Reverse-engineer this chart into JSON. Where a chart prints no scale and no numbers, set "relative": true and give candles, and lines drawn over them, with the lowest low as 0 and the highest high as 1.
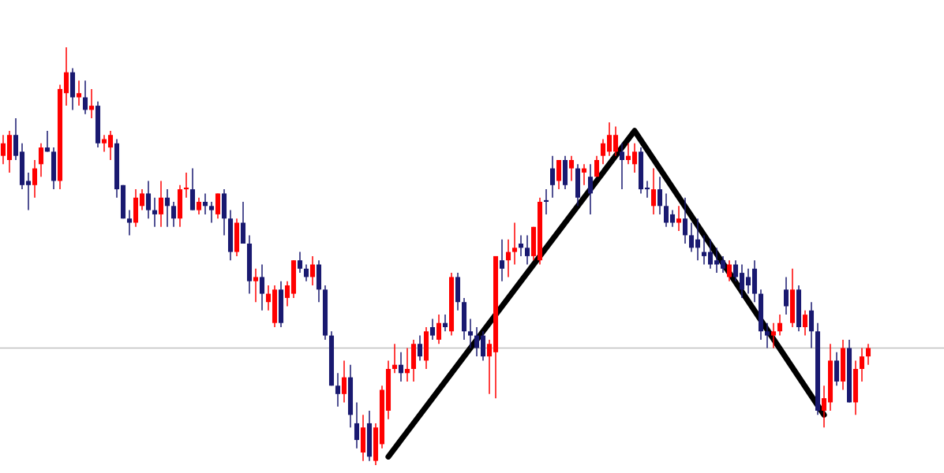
{
  "chart_data": {
    "type": "candlestick",
    "relative": true,
    "colors": [
      "#ff0000",
      "#ff0000",
      "#191970",
      "#191970",
      "#191970",
      "#ff0000",
      "#ff0000",
      "#191970",
      "#191970",
      "#ff0000",
      "#ff0000",
      "#191970",
      "#ff0000",
      "#191970",
      "#ff0000",
      "#191970",
      "#ff0000",
      "#ff0000",
      "#191970",
      "#191970",
      "#191970",
      "#ff0000",
      "#ff0000",
      "#191970",
      "#191970",
      "#ff0000",
      "#191970",
      "#191970",
      "#ff0000",
      "#ff0000",
      "#191970",
      "#ff0000",
      "#191970",
      "#191970",
      "#ff0000",
      "#191970",
      "#191970",
      "#ff0000",
      "#191970",
      "#191970",
      "#ff0000",
      "#191970",
      "#ff0000",
      "#ff0000",
      "#191970",
      "#ff0000",
      "#ff0000",
      "#191970",
      "#191970",
      "#ff0000",
      "#191970",
      "#191970",
      "#191970",
      "#191970",
      "#ff0000",
      "#191970",
      "#191970",
      "#ff0000",
      "#191970",
      "#ff0000",
      "#ff0000",
      "#ff0000",
      "#ff0000",
      "#191970",
      "#ff0000",
      "#ff0000",
      "#191970",
      "#ff0000",
      "#191970",
      "#ff0000",
      "#191970",
      "#ff0000",
      "#191970",
      "#191970",
      "#191970",
      "#191970",
      "#191970",
      "#ff0000",
      "#ff0000",
      "#191970",
      "#ff0000",
      "#ff0000",
      "#191970",
      "#191970",
      "#ff0000",
      "#ff0000",
      "#191970",
      "#191970",
      "#ff0000",
      "#191970",
      "#ff0000",
      "#191970",
      "#ff0000",
      "#191970",
      "#ff0000",
      "#ff0000",
      "#ff0000",
      "#ff0000",
      "#191970",
      "#ff0000",
      "#ff0000",
      "#191970",
      "#191970",
      "#ff0000",
      "#191970",
      "#191970",
      "#191970",
      "#ff0000",
      "#191970",
      "#191970",
      "#191970",
      "#191970",
      "#191970",
      "#191970",
      "#191970",
      "#ff0000",
      "#191970",
      "#191970",
      "#191970",
      "#191970",
      "#191970",
      "#191970",
      "#ff0000",
      "#ff0000",
      "#191970",
      "#ff0000",
      "#191970",
      "#ff0000",
      "#191970",
      "#191970",
      "#ff0000",
      "#ff0000",
      "#191970",
      "#ff0000",
      "#191970",
      "#ff0000",
      "#ff0000",
      "#ff0000"
    ],
    "categories": [
      null,
      null,
      null,
      null,
      null,
      null,
      null,
      null,
      null,
      null,
      null,
      null,
      null,
      null,
      null,
      null,
      null,
      null,
      null,
      null,
      null,
      null,
      null,
      null,
      null,
      null,
      null,
      null,
      null,
      null,
      null,
      null,
      null,
      null,
      null,
      null,
      null,
      null,
      null,
      null,
      null,
      null,
      null,
      null,
      null,
      null,
      null,
      null,
      null,
      null,
      null,
      null,
      null,
      null,
      null,
      null,
      null,
      null,
      null,
      null,
      null,
      null,
      null,
      null,
      null,
      null,
      null,
      null,
      null,
      null,
      null,
      null,
      null,
      null,
      null,
      null,
      null,
      null,
      null,
      null,
      null,
      null,
      null,
      null,
      null,
      null,
      null,
      null,
      null,
      null,
      null,
      null,
      null,
      null,
      null,
      null,
      null,
      null,
      null,
      null,
      null,
      null,
      null,
      null,
      null,
      null,
      null,
      null,
      null,
      null,
      null,
      null,
      null,
      null,
      null,
      null,
      null,
      null,
      null,
      null,
      null,
      null,
      null,
      null,
      null,
      null,
      null,
      null,
      null,
      null,
      null,
      null,
      null,
      null,
      null,
      null,
      null,
      null
    ],
    "ohlc": [
      [
        0.74,
        0.79,
        0.72,
        0.77
      ],
      [
        0.73,
        0.8,
        0.7,
        0.79
      ],
      [
        0.79,
        0.83,
        0.73,
        0.74
      ],
      [
        0.75,
        0.77,
        0.66,
        0.67
      ],
      [
        0.68,
        0.7,
        0.61,
        0.67
      ],
      [
        0.67,
        0.73,
        0.64,
        0.71
      ],
      [
        0.72,
        0.77,
        0.69,
        0.76
      ],
      [
        0.76,
        0.8,
        0.75,
        0.75
      ],
      [
        0.75,
        0.76,
        0.66,
        0.68
      ],
      [
        0.68,
        0.91,
        0.66,
        0.9
      ],
      [
        0.89,
        1.0,
        0.86,
        0.94
      ],
      [
        0.94,
        0.95,
        0.85,
        0.88
      ],
      [
        0.88,
        0.92,
        0.86,
        0.89
      ],
      [
        0.88,
        0.92,
        0.84,
        0.85
      ],
      [
        0.85,
        0.9,
        0.83,
        0.86
      ],
      [
        0.86,
        0.87,
        0.76,
        0.77
      ],
      [
        0.77,
        0.79,
        0.75,
        0.78
      ],
      [
        0.76,
        0.8,
        0.73,
        0.79
      ],
      [
        0.77,
        0.78,
        0.64,
        0.66
      ],
      [
        0.67,
        0.67,
        0.59,
        0.59
      ],
      [
        0.59,
        0.61,
        0.55,
        0.58
      ],
      [
        0.58,
        0.66,
        0.57,
        0.64
      ],
      [
        0.62,
        0.66,
        0.61,
        0.65
      ],
      [
        0.65,
        0.68,
        0.59,
        0.61
      ],
      [
        0.61,
        0.64,
        0.57,
        0.6
      ],
      [
        0.6,
        0.68,
        0.57,
        0.64
      ],
      [
        0.64,
        0.66,
        0.57,
        0.62
      ],
      [
        0.62,
        0.63,
        0.57,
        0.59
      ],
      [
        0.59,
        0.67,
        0.57,
        0.66
      ],
      [
        0.66,
        0.7,
        0.64,
        0.66
      ],
      [
        0.66,
        0.71,
        0.61,
        0.61
      ],
      [
        0.61,
        0.64,
        0.6,
        0.63
      ],
      [
        0.63,
        0.65,
        0.6,
        0.62
      ],
      [
        0.62,
        0.63,
        0.58,
        0.61
      ],
      [
        0.6,
        0.65,
        0.59,
        0.65
      ],
      [
        0.65,
        0.66,
        0.55,
        0.59
      ],
      [
        0.59,
        0.61,
        0.49,
        0.51
      ],
      [
        0.51,
        0.59,
        0.5,
        0.58
      ],
      [
        0.58,
        0.63,
        0.53,
        0.53
      ],
      [
        0.53,
        0.55,
        0.41,
        0.44
      ],
      [
        0.44,
        0.47,
        0.39,
        0.45
      ],
      [
        0.45,
        0.48,
        0.37,
        0.41
      ],
      [
        0.39,
        0.43,
        0.37,
        0.41
      ],
      [
        0.34,
        0.43,
        0.33,
        0.42
      ],
      [
        0.42,
        0.44,
        0.33,
        0.34
      ],
      [
        0.4,
        0.44,
        0.38,
        0.43
      ],
      [
        0.41,
        0.49,
        0.4,
        0.49
      ],
      [
        0.49,
        0.51,
        0.46,
        0.47
      ],
      [
        0.47,
        0.48,
        0.44,
        0.45
      ],
      [
        0.45,
        0.5,
        0.43,
        0.48
      ],
      [
        0.48,
        0.49,
        0.39,
        0.42
      ],
      [
        0.42,
        0.43,
        0.3,
        0.31
      ],
      [
        0.31,
        0.32,
        0.19,
        0.19
      ],
      [
        0.19,
        0.22,
        0.14,
        0.17
      ],
      [
        0.17,
        0.25,
        0.15,
        0.21
      ],
      [
        0.21,
        0.24,
        0.09,
        0.12
      ],
      [
        0.1,
        0.15,
        0.04,
        0.06
      ],
      [
        0.03,
        0.12,
        0.01,
        0.09
      ],
      [
        0.1,
        0.13,
        0.01,
        0.02
      ],
      [
        0.01,
        0.1,
        0.0,
        0.09
      ],
      [
        0.05,
        0.19,
        0.04,
        0.18
      ],
      [
        0.13,
        0.25,
        0.11,
        0.23
      ],
      [
        0.23,
        0.29,
        0.22,
        0.24
      ],
      [
        0.24,
        0.27,
        0.2,
        0.22
      ],
      [
        0.22,
        0.28,
        0.2,
        0.23
      ],
      [
        0.23,
        0.3,
        0.2,
        0.29
      ],
      [
        0.29,
        0.31,
        0.25,
        0.26
      ],
      [
        0.25,
        0.33,
        0.23,
        0.32
      ],
      [
        0.33,
        0.35,
        0.3,
        0.31
      ],
      [
        0.3,
        0.36,
        0.29,
        0.34
      ],
      [
        0.34,
        0.36,
        0.32,
        0.33
      ],
      [
        0.32,
        0.46,
        0.31,
        0.45
      ],
      [
        0.45,
        0.46,
        0.37,
        0.39
      ],
      [
        0.39,
        0.4,
        0.3,
        0.32
      ],
      [
        0.32,
        0.35,
        0.28,
        0.31
      ],
      [
        0.31,
        0.33,
        0.26,
        0.28
      ],
      [
        0.31,
        0.32,
        0.25,
        0.26
      ],
      [
        0.26,
        0.3,
        0.17,
        0.29
      ],
      [
        0.27,
        0.5,
        0.16,
        0.5
      ],
      [
        0.49,
        0.54,
        0.44,
        0.47
      ],
      [
        0.49,
        0.54,
        0.45,
        0.51
      ],
      [
        0.51,
        0.58,
        0.48,
        0.52
      ],
      [
        0.53,
        0.55,
        0.5,
        0.52
      ],
      [
        0.52,
        0.55,
        0.48,
        0.5
      ],
      [
        0.5,
        0.57,
        0.49,
        0.57
      ],
      [
        0.49,
        0.64,
        0.48,
        0.63
      ],
      [
        0.63,
        0.66,
        0.6,
        0.63
      ],
      [
        0.71,
        0.74,
        0.64,
        0.67
      ],
      [
        0.68,
        0.73,
        0.66,
        0.73
      ],
      [
        0.73,
        0.74,
        0.66,
        0.67
      ],
      [
        0.71,
        0.74,
        0.68,
        0.73
      ],
      [
        0.71,
        0.72,
        0.62,
        0.64
      ],
      [
        0.7,
        0.72,
        0.67,
        0.71
      ],
      [
        0.69,
        0.72,
        0.6,
        0.65
      ],
      [
        0.69,
        0.74,
        0.69,
        0.73
      ],
      [
        0.74,
        0.78,
        0.72,
        0.77
      ],
      [
        0.75,
        0.82,
        0.74,
        0.79
      ],
      [
        0.75,
        0.81,
        0.74,
        0.79
      ],
      [
        0.75,
        0.77,
        0.66,
        0.73
      ],
      [
        0.73,
        0.77,
        0.72,
        0.74
      ],
      [
        0.72,
        0.77,
        0.7,
        0.75
      ],
      [
        0.75,
        0.76,
        0.65,
        0.66
      ],
      [
        0.66,
        0.68,
        0.64,
        0.66
      ],
      [
        0.62,
        0.71,
        0.6,
        0.66
      ],
      [
        0.66,
        0.69,
        0.6,
        0.62
      ],
      [
        0.62,
        0.65,
        0.57,
        0.58
      ],
      [
        0.6,
        0.61,
        0.57,
        0.58
      ],
      [
        0.58,
        0.62,
        0.56,
        0.59
      ],
      [
        0.59,
        0.64,
        0.53,
        0.55
      ],
      [
        0.55,
        0.58,
        0.51,
        0.52
      ],
      [
        0.54,
        0.59,
        0.49,
        0.52
      ],
      [
        0.51,
        0.55,
        0.48,
        0.5
      ],
      [
        0.51,
        0.54,
        0.47,
        0.48
      ],
      [
        0.49,
        0.52,
        0.46,
        0.48
      ],
      [
        0.49,
        0.5,
        0.46,
        0.47
      ],
      [
        0.45,
        0.49,
        0.44,
        0.48
      ],
      [
        0.48,
        0.49,
        0.44,
        0.45
      ],
      [
        0.46,
        0.48,
        0.4,
        0.42
      ],
      [
        0.45,
        0.47,
        0.41,
        0.43
      ],
      [
        0.47,
        0.49,
        0.39,
        0.41
      ],
      [
        0.41,
        0.42,
        0.3,
        0.32
      ],
      [
        0.32,
        0.34,
        0.28,
        0.31
      ],
      [
        0.31,
        0.34,
        0.28,
        0.32
      ],
      [
        0.32,
        0.36,
        0.31,
        0.34
      ],
      [
        0.42,
        0.45,
        0.36,
        0.38
      ],
      [
        0.34,
        0.47,
        0.33,
        0.42
      ],
      [
        0.42,
        0.43,
        0.32,
        0.33
      ],
      [
        0.33,
        0.37,
        0.31,
        0.36
      ],
      [
        0.37,
        0.39,
        0.28,
        0.32
      ],
      [
        0.32,
        0.34,
        0.12,
        0.13
      ],
      [
        0.13,
        0.19,
        0.09,
        0.16
      ],
      [
        0.15,
        0.29,
        0.13,
        0.25
      ],
      [
        0.25,
        0.27,
        0.19,
        0.2
      ],
      [
        0.2,
        0.3,
        0.18,
        0.28
      ],
      [
        0.28,
        0.3,
        0.15,
        0.15
      ],
      [
        0.15,
        0.25,
        0.12,
        0.23
      ],
      [
        0.23,
        0.28,
        0.2,
        0.26
      ],
      [
        0.26,
        0.29,
        0.24,
        0.28
      ]
    ],
    "series": [
      {
        "type": "line",
        "values": [
          null,
          null,
          null,
          null,
          null,
          null,
          null,
          null,
          null,
          null,
          null,
          null,
          null,
          null,
          null,
          null,
          null,
          null,
          null,
          null,
          null,
          null,
          null,
          null,
          null,
          null,
          null,
          null,
          null,
          null,
          null,
          null,
          null,
          null,
          null,
          null,
          null,
          null,
          null,
          null,
          null,
          null,
          null,
          null,
          null,
          null,
          null,
          null,
          null,
          null,
          null,
          null,
          null,
          null,
          null,
          null,
          null,
          null,
          null,
          null,
          null,
          0.02,
          null,
          null,
          null,
          null,
          null,
          null,
          null,
          null,
          null,
          null,
          null,
          null,
          null,
          null,
          null,
          null,
          null,
          null,
          null,
          null,
          null,
          null,
          null,
          null,
          null,
          null,
          null,
          null,
          null,
          null,
          null,
          null,
          null,
          null,
          null,
          null,
          null,
          null,
          0.8,
          null,
          null,
          null,
          null,
          null,
          null,
          null,
          null,
          null,
          null,
          null,
          null,
          null,
          null,
          null,
          null,
          null,
          null,
          null,
          null,
          null,
          null,
          null,
          null,
          null,
          null,
          null,
          null,
          null,
          0.12,
          null,
          null,
          null,
          null,
          null,
          null,
          null
        ],
        "color": "#000000"
      }
    ],
    "ref_lines": [
      {
        "axis": "y",
        "value": 0.28,
        "color": "#c0c0c0"
      }
    ]
  }
}
